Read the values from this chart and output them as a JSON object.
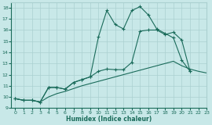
{
  "xlabel": "Humidex (Indice chaleur)",
  "xlim": [
    -0.5,
    23
  ],
  "ylim": [
    9,
    18.5
  ],
  "xticks": [
    0,
    1,
    2,
    3,
    4,
    5,
    6,
    7,
    8,
    9,
    10,
    11,
    12,
    13,
    14,
    15,
    16,
    17,
    18,
    19,
    20,
    21,
    22,
    23
  ],
  "yticks": [
    9,
    10,
    11,
    12,
    13,
    14,
    15,
    16,
    17,
    18
  ],
  "bg_color": "#c8e8e8",
  "line_color": "#1a6b5a",
  "grid_color": "#aad0d0",
  "line1_x": [
    0,
    1,
    2,
    3,
    4,
    5,
    6,
    7,
    8,
    9,
    10,
    11,
    12,
    13,
    14,
    15,
    16,
    17,
    18,
    19,
    20,
    21
  ],
  "line1_y": [
    9.85,
    9.7,
    9.7,
    9.55,
    10.85,
    10.85,
    10.7,
    11.3,
    11.55,
    11.8,
    15.4,
    17.75,
    16.5,
    16.1,
    17.75,
    18.1,
    17.35,
    16.1,
    15.7,
    15.3,
    13.3,
    12.3
  ],
  "line2_x": [
    0,
    1,
    2,
    3,
    4,
    5,
    6,
    7,
    8,
    9,
    10,
    11,
    12,
    13,
    14,
    15,
    16,
    17,
    18,
    19,
    20,
    21
  ],
  "line2_y": [
    9.85,
    9.7,
    9.7,
    9.55,
    10.85,
    10.85,
    10.7,
    11.3,
    11.55,
    11.8,
    12.3,
    12.5,
    12.45,
    12.45,
    13.1,
    15.9,
    16.0,
    16.0,
    15.6,
    15.8,
    15.1,
    12.3
  ],
  "line3_x": [
    0,
    1,
    2,
    3,
    4,
    5,
    6,
    7,
    8,
    9,
    10,
    11,
    12,
    13,
    14,
    15,
    16,
    17,
    18,
    19,
    20,
    21,
    22,
    23
  ],
  "line3_y": [
    9.85,
    9.7,
    9.7,
    9.55,
    10.0,
    10.3,
    10.5,
    10.75,
    11.0,
    11.2,
    11.4,
    11.6,
    11.8,
    12.0,
    12.2,
    12.4,
    12.6,
    12.8,
    13.0,
    13.2,
    12.8,
    12.5,
    12.3,
    12.15
  ]
}
